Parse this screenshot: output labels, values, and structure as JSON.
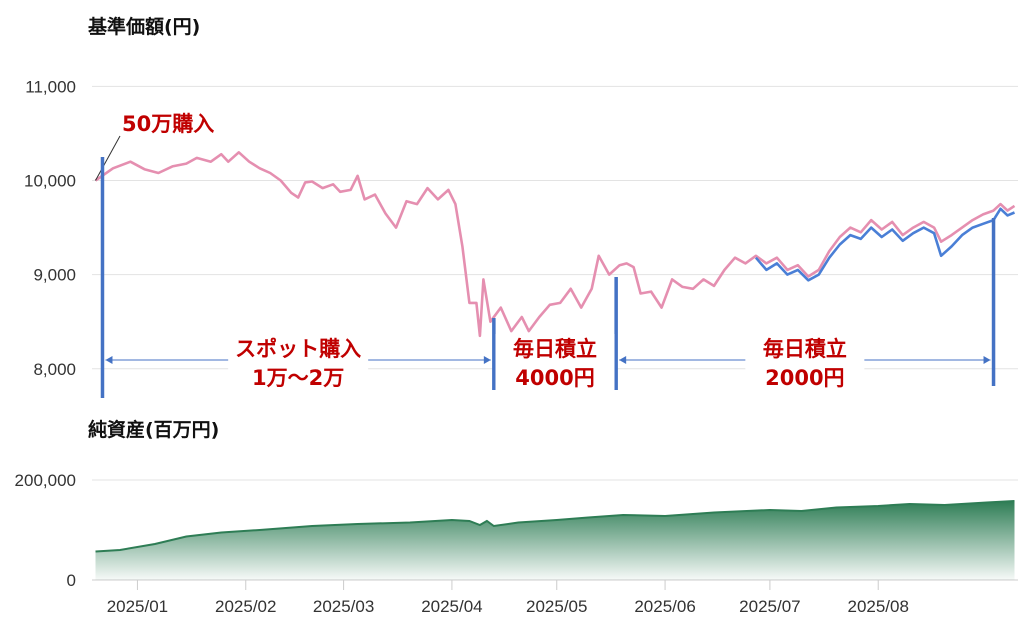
{
  "chart_data": [
    {
      "type": "line",
      "title": "基準価額(円)",
      "ylim": [
        7700,
        11100
      ],
      "yticks": [
        8000,
        9000,
        10000,
        11000
      ],
      "ytick_labels": [
        "8,000",
        "9,000",
        "10,000",
        "11,000"
      ],
      "grid": true,
      "series": [
        {
          "color": "#e58fb0",
          "points": [
            [
              "2024-12-20",
              10000
            ],
            [
              "2024-12-25",
              10130
            ],
            [
              "2024-12-30",
              10200
            ],
            [
              "2025-01-03",
              10120
            ],
            [
              "2025-01-07",
              10080
            ],
            [
              "2025-01-11",
              10150
            ],
            [
              "2025-01-15",
              10180
            ],
            [
              "2025-01-18",
              10240
            ],
            [
              "2025-01-22",
              10200
            ],
            [
              "2025-01-25",
              10280
            ],
            [
              "2025-01-27",
              10200
            ],
            [
              "2025-01-30",
              10300
            ],
            [
              "2025-02-02",
              10200
            ],
            [
              "2025-02-05",
              10130
            ],
            [
              "2025-02-08",
              10080
            ],
            [
              "2025-02-11",
              10000
            ],
            [
              "2025-02-14",
              9870
            ],
            [
              "2025-02-16",
              9820
            ],
            [
              "2025-02-18",
              9980
            ],
            [
              "2025-02-20",
              9990
            ],
            [
              "2025-02-23",
              9920
            ],
            [
              "2025-02-26",
              9960
            ],
            [
              "2025-02-28",
              9880
            ],
            [
              "2025-03-03",
              9900
            ],
            [
              "2025-03-05",
              10050
            ],
            [
              "2025-03-07",
              9800
            ],
            [
              "2025-03-10",
              9850
            ],
            [
              "2025-03-13",
              9650
            ],
            [
              "2025-03-16",
              9500
            ],
            [
              "2025-03-19",
              9780
            ],
            [
              "2025-03-22",
              9750
            ],
            [
              "2025-03-25",
              9920
            ],
            [
              "2025-03-28",
              9800
            ],
            [
              "2025-03-31",
              9900
            ],
            [
              "2025-04-02",
              9750
            ],
            [
              "2025-04-04",
              9300
            ],
            [
              "2025-04-06",
              8700
            ],
            [
              "2025-04-08",
              8700
            ],
            [
              "2025-04-09",
              8350
            ],
            [
              "2025-04-10",
              8950
            ],
            [
              "2025-04-12",
              8500
            ],
            [
              "2025-04-15",
              8650
            ],
            [
              "2025-04-18",
              8400
            ],
            [
              "2025-04-21",
              8550
            ],
            [
              "2025-04-23",
              8400
            ],
            [
              "2025-04-26",
              8550
            ],
            [
              "2025-04-29",
              8680
            ],
            [
              "2025-05-02",
              8700
            ],
            [
              "2025-05-05",
              8850
            ],
            [
              "2025-05-08",
              8650
            ],
            [
              "2025-05-11",
              8850
            ],
            [
              "2025-05-13",
              9200
            ],
            [
              "2025-05-16",
              9000
            ],
            [
              "2025-05-19",
              9100
            ],
            [
              "2025-05-21",
              9120
            ],
            [
              "2025-05-23",
              9080
            ],
            [
              "2025-05-25",
              8800
            ],
            [
              "2025-05-28",
              8820
            ],
            [
              "2025-05-31",
              8650
            ],
            [
              "2025-06-03",
              8950
            ],
            [
              "2025-06-06",
              8870
            ],
            [
              "2025-06-09",
              8850
            ],
            [
              "2025-06-12",
              8950
            ],
            [
              "2025-06-15",
              8880
            ],
            [
              "2025-06-18",
              9050
            ],
            [
              "2025-06-21",
              9180
            ],
            [
              "2025-06-24",
              9120
            ],
            [
              "2025-06-27",
              9200
            ],
            [
              "2025-06-30",
              9120
            ],
            [
              "2025-07-03",
              9180
            ],
            [
              "2025-07-06",
              9050
            ],
            [
              "2025-07-09",
              9100
            ],
            [
              "2025-07-12",
              8980
            ],
            [
              "2025-07-15",
              9050
            ],
            [
              "2025-07-18",
              9250
            ],
            [
              "2025-07-21",
              9400
            ],
            [
              "2025-07-24",
              9500
            ],
            [
              "2025-07-27",
              9450
            ],
            [
              "2025-07-30",
              9580
            ],
            [
              "2025-08-02",
              9480
            ],
            [
              "2025-08-05",
              9560
            ],
            [
              "2025-08-08",
              9420
            ],
            [
              "2025-08-11",
              9500
            ],
            [
              "2025-08-14",
              9560
            ],
            [
              "2025-08-17",
              9500
            ],
            [
              "2025-08-19",
              9350
            ],
            [
              "2025-08-22",
              9420
            ],
            [
              "2025-08-25",
              9500
            ],
            [
              "2025-08-28",
              9580
            ],
            [
              "2025-08-31",
              9640
            ],
            [
              "2025-09-03",
              9680
            ],
            [
              "2025-09-05",
              9750
            ],
            [
              "2025-09-07",
              9680
            ],
            [
              "2025-09-09",
              9730
            ]
          ]
        },
        {
          "color": "#4a7fd6",
          "points": [
            [
              "2025-06-27",
              9180
            ],
            [
              "2025-06-30",
              9050
            ],
            [
              "2025-07-03",
              9120
            ],
            [
              "2025-07-06",
              9000
            ],
            [
              "2025-07-09",
              9050
            ],
            [
              "2025-07-12",
              8940
            ],
            [
              "2025-07-15",
              9000
            ],
            [
              "2025-07-18",
              9180
            ],
            [
              "2025-07-21",
              9320
            ],
            [
              "2025-07-24",
              9420
            ],
            [
              "2025-07-27",
              9380
            ],
            [
              "2025-07-30",
              9500
            ],
            [
              "2025-08-02",
              9400
            ],
            [
              "2025-08-05",
              9480
            ],
            [
              "2025-08-08",
              9360
            ],
            [
              "2025-08-11",
              9440
            ],
            [
              "2025-08-14",
              9500
            ],
            [
              "2025-08-17",
              9440
            ],
            [
              "2025-08-19",
              9200
            ],
            [
              "2025-08-22",
              9300
            ],
            [
              "2025-08-25",
              9420
            ],
            [
              "2025-08-28",
              9500
            ],
            [
              "2025-08-31",
              9540
            ],
            [
              "2025-09-03",
              9580
            ],
            [
              "2025-09-05",
              9700
            ],
            [
              "2025-09-07",
              9630
            ],
            [
              "2025-09-09",
              9660
            ]
          ]
        }
      ],
      "annotations": [
        {
          "text": "50万購入",
          "at": [
            "2024-12-20",
            10000
          ]
        },
        {
          "lines": [
            "スポット購入",
            "1万〜2万"
          ],
          "from": "2024-12-22",
          "to": "2025-04-13"
        },
        {
          "lines": [
            "毎日積立",
            "4000円"
          ],
          "from": "2025-04-13",
          "to": "2025-05-18"
        },
        {
          "lines": [
            "毎日積立",
            "2000円"
          ],
          "from": "2025-05-18",
          "to": "2025-09-03"
        }
      ]
    },
    {
      "type": "area",
      "title": "純資産(百万円)",
      "ylim": [
        0,
        200000
      ],
      "yticks": [
        0,
        200000
      ],
      "ytick_labels": [
        "0",
        "200,000"
      ],
      "color": "#2e7d55",
      "points": [
        [
          "2024-12-20",
          57000
        ],
        [
          "2024-12-27",
          60000
        ],
        [
          "2025-01-06",
          72000
        ],
        [
          "2025-01-15",
          87000
        ],
        [
          "2025-01-25",
          95000
        ],
        [
          "2025-02-05",
          100000
        ],
        [
          "2025-02-20",
          108000
        ],
        [
          "2025-03-05",
          112000
        ],
        [
          "2025-03-20",
          115000
        ],
        [
          "2025-04-01",
          120000
        ],
        [
          "2025-04-06",
          118000
        ],
        [
          "2025-04-09",
          110000
        ],
        [
          "2025-04-11",
          118000
        ],
        [
          "2025-04-13",
          108000
        ],
        [
          "2025-04-20",
          115000
        ],
        [
          "2025-05-01",
          120000
        ],
        [
          "2025-05-10",
          125000
        ],
        [
          "2025-05-20",
          130000
        ],
        [
          "2025-06-01",
          128000
        ],
        [
          "2025-06-15",
          135000
        ],
        [
          "2025-07-01",
          140000
        ],
        [
          "2025-07-10",
          138000
        ],
        [
          "2025-07-20",
          145000
        ],
        [
          "2025-08-01",
          148000
        ],
        [
          "2025-08-10",
          152000
        ],
        [
          "2025-08-20",
          150000
        ],
        [
          "2025-09-01",
          155000
        ],
        [
          "2025-09-09",
          158000
        ]
      ]
    }
  ],
  "x_axis": {
    "range": [
      "2024-12-19",
      "2025-09-10"
    ],
    "ticks": [
      "2025-01-01",
      "2025-02-01",
      "2025-03-01",
      "2025-04-01",
      "2025-05-01",
      "2025-06-01",
      "2025-07-01",
      "2025-08-01"
    ],
    "tick_labels": [
      "2025/01",
      "2025/02",
      "2025/03",
      "2025/04",
      "2025/05",
      "2025/06",
      "2025/07",
      "2025/08"
    ]
  }
}
